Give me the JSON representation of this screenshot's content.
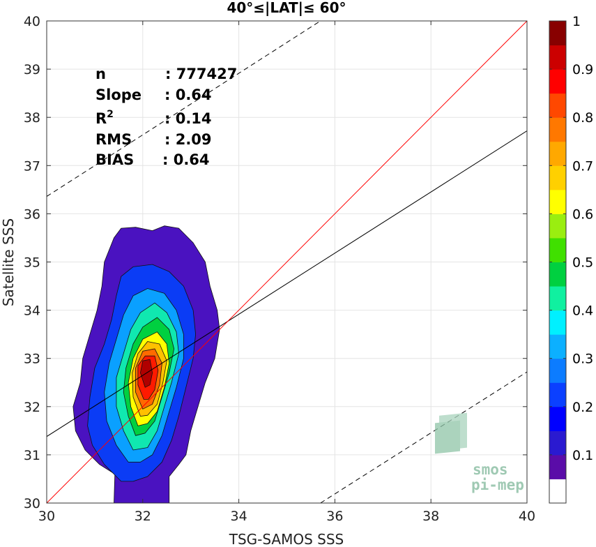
{
  "chart_data": {
    "type": "heatmap",
    "title": "40°≤|LAT|≤ 60°",
    "xlabel": "TSG-SAMOS SSS",
    "ylabel": "Satellite SSS",
    "xlim": [
      30,
      40
    ],
    "ylim": [
      30,
      40
    ],
    "xticks": [
      "30",
      "32",
      "34",
      "36",
      "38",
      "40"
    ],
    "yticks": [
      "30",
      "31",
      "32",
      "33",
      "34",
      "35",
      "36",
      "37",
      "38",
      "39",
      "40"
    ],
    "grid": true,
    "colorbar": {
      "range": [
        0,
        1
      ],
      "ticks": [
        "0.1",
        "0.2",
        "0.3",
        "0.4",
        "0.5",
        "0.6",
        "0.7",
        "0.8",
        "0.9",
        "1"
      ],
      "colors": [
        "#ffffff",
        "#5a0ca8",
        "#2a1ad0",
        "#0000ff",
        "#0b40ff",
        "#0c7cff",
        "#0cb0ff",
        "#00f0ff",
        "#10f0a0",
        "#00d040",
        "#40e000",
        "#9aee10",
        "#ffff00",
        "#ffd000",
        "#ffa800",
        "#ff7800",
        "#ff4800",
        "#ff0000",
        "#cc0000",
        "#880000"
      ]
    },
    "stats": [
      {
        "label": "n",
        "value": ": 777427"
      },
      {
        "label": "Slope",
        "value": ": 0.64"
      },
      {
        "label": "R",
        "sup": "2",
        "value": ": 0.14"
      },
      {
        "label": "RMS",
        "value": ": 2.09"
      },
      {
        "label": "BIAS",
        "value": ": 0.64"
      }
    ],
    "lines": {
      "identity": {
        "color": "#ff0000",
        "points": [
          [
            30,
            30
          ],
          [
            40,
            40
          ]
        ]
      },
      "fit": {
        "color": "#000000",
        "points": [
          [
            30,
            31.38
          ],
          [
            40,
            37.72
          ]
        ]
      },
      "upper_bound": {
        "style": "dashed",
        "points": [
          [
            30,
            36.36
          ],
          [
            35.7,
            40
          ]
        ]
      },
      "lower_bound": {
        "style": "dashed",
        "points": [
          [
            35.7,
            30
          ],
          [
            40,
            32.72
          ]
        ]
      }
    },
    "contours": [
      {
        "level": 0.05,
        "color": "#4a12c0",
        "points": [
          [
            31.4,
            30
          ],
          [
            31.42,
            30.6
          ],
          [
            31.1,
            30.8
          ],
          [
            30.8,
            31.1
          ],
          [
            30.6,
            31.5
          ],
          [
            30.55,
            32
          ],
          [
            30.7,
            32.5
          ],
          [
            30.75,
            33
          ],
          [
            30.9,
            33.5
          ],
          [
            31.05,
            34
          ],
          [
            31.15,
            34.5
          ],
          [
            31.2,
            35
          ],
          [
            31.4,
            35.5
          ],
          [
            31.55,
            35.7
          ],
          [
            31.85,
            35.72
          ],
          [
            32.2,
            35.65
          ],
          [
            32.45,
            35.75
          ],
          [
            32.75,
            35.7
          ],
          [
            33.05,
            35.4
          ],
          [
            33.3,
            35
          ],
          [
            33.4,
            34.5
          ],
          [
            33.55,
            34
          ],
          [
            33.6,
            33.6
          ],
          [
            33.5,
            33
          ],
          [
            33.3,
            32.5
          ],
          [
            33.15,
            32
          ],
          [
            33,
            31.5
          ],
          [
            32.9,
            31
          ],
          [
            32.75,
            30.8
          ],
          [
            32.55,
            30.55
          ],
          [
            32.55,
            30
          ]
        ]
      },
      {
        "level": 0.2,
        "color": "#0b3cf5",
        "points": [
          [
            31.55,
            30.45
          ],
          [
            31.2,
            30.8
          ],
          [
            30.95,
            31.2
          ],
          [
            30.85,
            31.6
          ],
          [
            30.9,
            32.2
          ],
          [
            31,
            32.8
          ],
          [
            31.2,
            33.3
          ],
          [
            31.35,
            33.8
          ],
          [
            31.45,
            34.3
          ],
          [
            31.55,
            34.7
          ],
          [
            31.8,
            34.9
          ],
          [
            32.2,
            34.95
          ],
          [
            32.55,
            34.8
          ],
          [
            32.85,
            34.5
          ],
          [
            33.05,
            34
          ],
          [
            33.1,
            33.5
          ],
          [
            33.05,
            33
          ],
          [
            32.9,
            32.4
          ],
          [
            32.75,
            31.8
          ],
          [
            32.6,
            31.3
          ],
          [
            32.4,
            30.85
          ],
          [
            32.1,
            30.55
          ],
          [
            31.8,
            30.45
          ]
        ]
      },
      {
        "level": 0.3,
        "color": "#0aa0ff",
        "points": [
          [
            31.7,
            30.85
          ],
          [
            31.45,
            31.2
          ],
          [
            31.25,
            31.7
          ],
          [
            31.2,
            32.3
          ],
          [
            31.3,
            32.9
          ],
          [
            31.45,
            33.4
          ],
          [
            31.6,
            33.9
          ],
          [
            31.8,
            34.3
          ],
          [
            32.1,
            34.45
          ],
          [
            32.45,
            34.35
          ],
          [
            32.7,
            34
          ],
          [
            32.85,
            33.5
          ],
          [
            32.85,
            33
          ],
          [
            32.7,
            32.4
          ],
          [
            32.55,
            31.9
          ],
          [
            32.4,
            31.4
          ],
          [
            32.2,
            31
          ],
          [
            31.95,
            30.85
          ]
        ]
      },
      {
        "level": 0.4,
        "color": "#10e8b0",
        "points": [
          [
            31.8,
            31.1
          ],
          [
            31.6,
            31.5
          ],
          [
            31.45,
            32
          ],
          [
            31.45,
            32.6
          ],
          [
            31.6,
            33.1
          ],
          [
            31.75,
            33.6
          ],
          [
            31.95,
            33.95
          ],
          [
            32.25,
            34.15
          ],
          [
            32.5,
            33.95
          ],
          [
            32.7,
            33.55
          ],
          [
            32.75,
            33.1
          ],
          [
            32.6,
            32.5
          ],
          [
            32.45,
            32
          ],
          [
            32.3,
            31.5
          ],
          [
            32.1,
            31.15
          ]
        ]
      },
      {
        "level": 0.5,
        "color": "#00d040",
        "points": [
          [
            31.85,
            31.4
          ],
          [
            31.7,
            31.8
          ],
          [
            31.6,
            32.3
          ],
          [
            31.65,
            32.8
          ],
          [
            31.8,
            33.3
          ],
          [
            32,
            33.65
          ],
          [
            32.3,
            33.85
          ],
          [
            32.55,
            33.6
          ],
          [
            32.65,
            33.2
          ],
          [
            32.55,
            32.7
          ],
          [
            32.4,
            32.2
          ],
          [
            32.25,
            31.7
          ],
          [
            32.05,
            31.45
          ]
        ]
      },
      {
        "level": 0.6,
        "color": "#ffff00",
        "points": [
          [
            31.9,
            31.6
          ],
          [
            31.75,
            32
          ],
          [
            31.7,
            32.5
          ],
          [
            31.8,
            33
          ],
          [
            32,
            33.4
          ],
          [
            32.3,
            33.55
          ],
          [
            32.5,
            33.3
          ],
          [
            32.55,
            32.9
          ],
          [
            32.45,
            32.4
          ],
          [
            32.3,
            31.9
          ],
          [
            32.1,
            31.65
          ]
        ]
      },
      {
        "level": 0.7,
        "color": "#ffc000",
        "points": [
          [
            31.95,
            31.8
          ],
          [
            31.8,
            32.2
          ],
          [
            31.78,
            32.7
          ],
          [
            31.9,
            33.1
          ],
          [
            32.1,
            33.35
          ],
          [
            32.35,
            33.3
          ],
          [
            32.5,
            32.95
          ],
          [
            32.42,
            32.5
          ],
          [
            32.3,
            32.05
          ],
          [
            32.1,
            31.82
          ]
        ]
      },
      {
        "level": 0.8,
        "color": "#ff6a00",
        "points": [
          [
            32,
            31.95
          ],
          [
            31.85,
            32.3
          ],
          [
            31.85,
            32.8
          ],
          [
            32,
            33.15
          ],
          [
            32.25,
            33.2
          ],
          [
            32.4,
            32.9
          ],
          [
            32.35,
            32.45
          ],
          [
            32.2,
            32.05
          ]
        ]
      },
      {
        "level": 0.9,
        "color": "#ff1a00",
        "points": [
          [
            32.02,
            32.15
          ],
          [
            31.9,
            32.45
          ],
          [
            31.9,
            32.85
          ],
          [
            32.05,
            33.05
          ],
          [
            32.25,
            33.05
          ],
          [
            32.32,
            32.75
          ],
          [
            32.25,
            32.35
          ],
          [
            32.12,
            32.15
          ]
        ]
      },
      {
        "level": 1.0,
        "color": "#b00000",
        "points": [
          [
            32.05,
            32.4
          ],
          [
            31.95,
            32.7
          ],
          [
            32.0,
            32.95
          ],
          [
            32.15,
            32.98
          ],
          [
            32.2,
            32.7
          ],
          [
            32.15,
            32.45
          ]
        ]
      }
    ]
  },
  "watermark": {
    "line1": "smos",
    "line2": "pi-mep"
  }
}
